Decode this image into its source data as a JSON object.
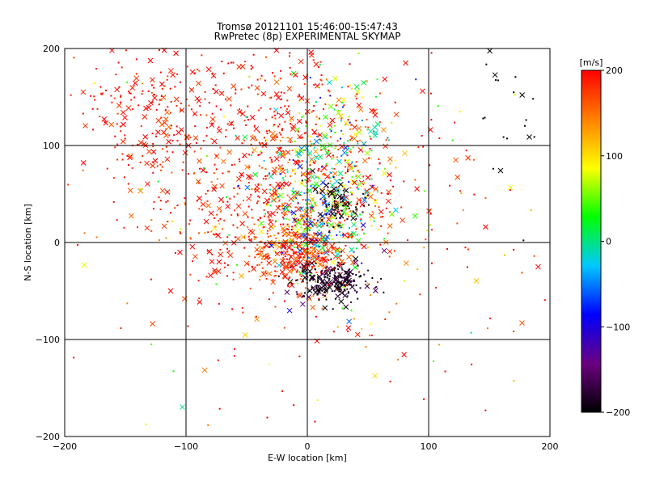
{
  "chart_data": {
    "type": "scatter",
    "title": "Tromsø 20121101 15:46:00-15:47:43",
    "subtitle": "RwPretec (8p) EXPERIMENTAL SKYMAP",
    "xlabel": "E-W location [km]",
    "ylabel": "N-S location [km]",
    "xlim": [
      -200,
      200
    ],
    "ylim": [
      -200,
      200
    ],
    "xticks": [
      -200,
      -100,
      0,
      100,
      200
    ],
    "yticks": [
      -200,
      -100,
      0,
      100,
      200
    ],
    "grid": true,
    "markers": [
      "cross",
      "dot"
    ],
    "colorbar": {
      "label": "[m/s]",
      "min": -200,
      "max": 200,
      "ticks": [
        200,
        100,
        0,
        -100,
        -200
      ],
      "colors": [
        "#000000",
        "#6a0080",
        "#0000ff",
        "#00c8ff",
        "#00ff00",
        "#ffff00",
        "#ff8000",
        "#ff0000"
      ]
    },
    "clusters": [
      {
        "cx": -28,
        "cy": 55,
        "sx": 55,
        "sy": 55,
        "n": 700,
        "v_mean": 185,
        "v_sd": 25
      },
      {
        "cx": -10,
        "cy": -10,
        "sx": 22,
        "sy": 18,
        "n": 320,
        "v_mean": 175,
        "v_sd": 30
      },
      {
        "cx": 20,
        "cy": 90,
        "sx": 28,
        "sy": 45,
        "n": 260,
        "v_mean": 60,
        "v_sd": 80
      },
      {
        "cx": 10,
        "cy": 25,
        "sx": 22,
        "sy": 28,
        "n": 260,
        "v_mean": 20,
        "v_sd": 70
      },
      {
        "cx": 20,
        "cy": -40,
        "sx": 16,
        "sy": 10,
        "n": 240,
        "v_mean": -185,
        "v_sd": 15
      },
      {
        "cx": 25,
        "cy": 40,
        "sx": 10,
        "sy": 12,
        "n": 80,
        "v_mean": -190,
        "v_sd": 10
      },
      {
        "cx": -130,
        "cy": 140,
        "sx": 30,
        "sy": 30,
        "n": 170,
        "v_mean": 190,
        "v_sd": 15
      },
      {
        "cx": 0,
        "cy": 0,
        "sx": 110,
        "sy": 110,
        "n": 160,
        "v_mean": 150,
        "v_sd": 90
      },
      {
        "cx": 175,
        "cy": 110,
        "sx": 18,
        "sy": 50,
        "n": 22,
        "v_mean": -195,
        "v_sd": 5
      },
      {
        "cx": 130,
        "cy": -40,
        "sx": 50,
        "sy": 90,
        "n": 35,
        "v_mean": 170,
        "v_sd": 40
      },
      {
        "cx": -30,
        "cy": 160,
        "sx": 30,
        "sy": 25,
        "n": 80,
        "v_mean": 190,
        "v_sd": 15
      }
    ]
  }
}
